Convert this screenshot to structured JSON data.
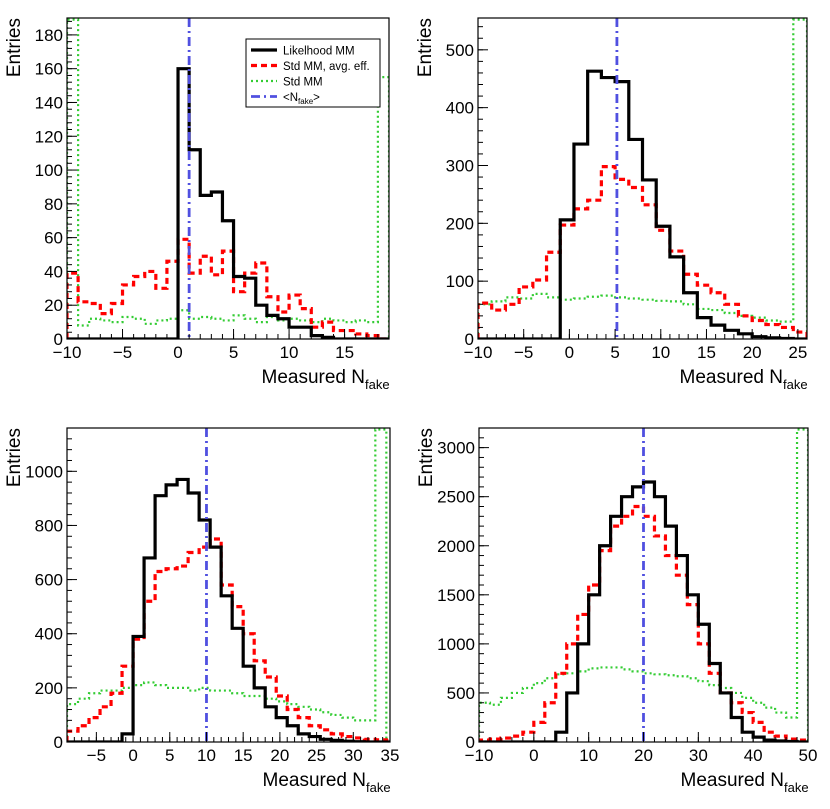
{
  "colors": {
    "likelihood": "#000000",
    "std_avg": "#ff0000",
    "std": "#33cc33",
    "mean": "#5050e0"
  },
  "legend": {
    "entries": [
      {
        "key": "likelihood",
        "label": "Likelhood MM",
        "style": "solid"
      },
      {
        "key": "std_avg",
        "label": "Std MM, avg. eff.",
        "style": "dashed"
      },
      {
        "key": "std",
        "label": "Std MM",
        "style": "dotted"
      },
      {
        "key": "mean",
        "label_main": "<N",
        "label_sub": "fake",
        "label_end": ">",
        "style": "dashdot"
      }
    ]
  },
  "chart_data": [
    {
      "type": "histogram",
      "title": "",
      "xlabel_main": "Measured N",
      "xlabel_sub": "fake",
      "ylabel": "Entries",
      "xlim": [
        -10,
        19
      ],
      "ylim": [
        0,
        190
      ],
      "xticks": [
        -10,
        -5,
        0,
        5,
        10,
        15
      ],
      "yticks": [
        0,
        20,
        40,
        60,
        80,
        100,
        120,
        140,
        160,
        180
      ],
      "mean_line": 1,
      "series": [
        {
          "key": "likelihood",
          "name": "Likelhood MM",
          "edges": [
            -10,
            -9,
            -8,
            -7,
            -6,
            -5,
            -4,
            -3,
            -2,
            -1,
            0,
            1,
            2,
            3,
            4,
            5,
            6,
            7,
            8,
            9,
            10,
            11,
            12,
            13,
            14,
            15,
            16,
            17,
            18,
            19
          ],
          "values": [
            0,
            0,
            0,
            0,
            0,
            0,
            0,
            0,
            0,
            0,
            160,
            112,
            85,
            87,
            70,
            37,
            36,
            20,
            14,
            12,
            7,
            7,
            2,
            1,
            0,
            0,
            0,
            0,
            0
          ]
        },
        {
          "key": "std_avg",
          "name": "Std MM, avg. eff.",
          "edges": [
            -10,
            -9,
            -8,
            -7,
            -6,
            -5,
            -4,
            -3,
            -2,
            -1,
            0,
            1,
            2,
            3,
            4,
            5,
            6,
            7,
            8,
            9,
            10,
            11,
            12,
            13,
            14,
            15,
            16,
            17,
            18,
            19
          ],
          "values": [
            39,
            22,
            21,
            15,
            21,
            32,
            37,
            40,
            30,
            46,
            59,
            39,
            49,
            38,
            52,
            28,
            39,
            45,
            25,
            16,
            26,
            18,
            7,
            10,
            5,
            5,
            3,
            2,
            0
          ]
        },
        {
          "key": "std",
          "name": "Std MM",
          "edges": [
            -10,
            -9,
            -8,
            -7,
            -6,
            -5,
            -4,
            -3,
            -2,
            -1,
            0,
            1,
            2,
            3,
            4,
            5,
            6,
            7,
            8,
            9,
            10,
            11,
            12,
            13,
            14,
            15,
            16,
            17,
            18,
            19
          ],
          "values": [
            190,
            8,
            12,
            11,
            10,
            13,
            12,
            9,
            11,
            12,
            17,
            12,
            13,
            12,
            11,
            14,
            12,
            10,
            13,
            11,
            12,
            11,
            10,
            12,
            11,
            10,
            11,
            10,
            155
          ]
        }
      ]
    },
    {
      "type": "histogram",
      "title": "",
      "xlabel_main": "Measured N",
      "xlabel_sub": "fake",
      "ylabel": "Entries",
      "xlim": [
        -10,
        26
      ],
      "ylim": [
        0,
        555
      ],
      "xticks": [
        -10,
        -5,
        0,
        5,
        10,
        15,
        20,
        25
      ],
      "yticks": [
        0,
        100,
        200,
        300,
        400,
        500
      ],
      "mean_line": 5.2,
      "series": [
        {
          "key": "likelihood",
          "name": "Likelhood MM",
          "edges": [
            -10,
            -8.5,
            -7,
            -5.5,
            -4,
            -2.5,
            -1,
            0.5,
            2,
            3.5,
            5,
            6.5,
            8,
            9.5,
            11,
            12.5,
            14,
            15.5,
            17,
            18.5,
            20,
            21.5,
            23,
            24.5,
            26
          ],
          "values": [
            0,
            0,
            0,
            0,
            0,
            0,
            206,
            337,
            463,
            452,
            445,
            345,
            275,
            195,
            142,
            80,
            37,
            24,
            15,
            9,
            4,
            2,
            1,
            0
          ]
        },
        {
          "key": "std_avg",
          "name": "Std MM, avg. eff.",
          "edges": [
            -10,
            -8.5,
            -7,
            -5.5,
            -4,
            -2.5,
            -1,
            0.5,
            2,
            3.5,
            5,
            6.5,
            8,
            9.5,
            11,
            12.5,
            14,
            15.5,
            17,
            18.5,
            20,
            21.5,
            23,
            24.5,
            26
          ],
          "values": [
            62,
            50,
            60,
            90,
            102,
            150,
            197,
            225,
            240,
            298,
            276,
            262,
            232,
            188,
            152,
            112,
            93,
            80,
            60,
            40,
            32,
            25,
            20,
            12
          ]
        },
        {
          "key": "std",
          "name": "Std MM",
          "edges": [
            -10,
            -8.5,
            -7,
            -5.5,
            -4,
            -2.5,
            -1,
            0.5,
            2,
            3.5,
            5,
            6.5,
            8,
            9.5,
            11,
            12.5,
            14,
            15.5,
            17,
            18.5,
            20,
            21.5,
            23,
            24.5,
            26
          ],
          "values": [
            60,
            65,
            72,
            70,
            78,
            72,
            68,
            70,
            73,
            75,
            72,
            70,
            68,
            66,
            65,
            60,
            52,
            50,
            45,
            40,
            37,
            32,
            30,
            555
          ]
        }
      ]
    },
    {
      "type": "histogram",
      "title": "",
      "xlabel_main": "Measured N",
      "xlabel_sub": "fake",
      "ylabel": "Entries",
      "xlim": [
        -9,
        35
      ],
      "ylim": [
        0,
        1160
      ],
      "xticks": [
        -5,
        0,
        5,
        10,
        15,
        20,
        25,
        30,
        35
      ],
      "yticks": [
        0,
        200,
        400,
        600,
        800,
        1000
      ],
      "mean_line": 10,
      "series": [
        {
          "key": "likelihood",
          "name": "Likelhood MM",
          "edges": [
            -9,
            -7.5,
            -6,
            -4.5,
            -3,
            -1.5,
            0,
            1.5,
            3,
            4.5,
            6,
            7.5,
            9,
            10.5,
            12,
            13.5,
            15,
            16.5,
            18,
            19.5,
            21,
            22.5,
            24,
            25.5,
            27,
            28.5,
            30,
            31.5,
            33,
            34.5,
            35
          ],
          "values": [
            0,
            0,
            0,
            0,
            0,
            30,
            390,
            680,
            910,
            950,
            970,
            920,
            820,
            720,
            540,
            420,
            280,
            200,
            130,
            90,
            60,
            30,
            20,
            10,
            6,
            3,
            1,
            0,
            0,
            0
          ]
        },
        {
          "key": "std_avg",
          "name": "Std MM, avg. eff.",
          "edges": [
            -9,
            -7.5,
            -6,
            -4.5,
            -3,
            -1.5,
            0,
            1.5,
            3,
            4.5,
            6,
            7.5,
            9,
            10.5,
            12,
            13.5,
            15,
            16.5,
            18,
            19.5,
            21,
            22.5,
            24,
            25.5,
            27,
            28.5,
            30,
            31.5,
            33,
            34.5,
            35
          ],
          "values": [
            40,
            60,
            90,
            130,
            180,
            280,
            380,
            520,
            630,
            640,
            650,
            700,
            720,
            750,
            580,
            500,
            400,
            300,
            240,
            170,
            120,
            90,
            60,
            45,
            30,
            20,
            15,
            10,
            8,
            5
          ]
        },
        {
          "key": "std",
          "name": "Std MM",
          "edges": [
            -9,
            -7.5,
            -6,
            -4.5,
            -3,
            -1.5,
            0,
            1.5,
            3,
            4.5,
            6,
            7.5,
            9,
            10.5,
            12,
            13.5,
            15,
            16.5,
            18,
            19.5,
            21,
            22.5,
            24,
            25.5,
            27,
            28.5,
            30,
            31.5,
            33,
            34.5,
            35
          ],
          "values": [
            140,
            160,
            180,
            190,
            190,
            200,
            210,
            220,
            210,
            200,
            200,
            190,
            200,
            190,
            190,
            180,
            170,
            170,
            160,
            150,
            140,
            130,
            120,
            110,
            100,
            90,
            80,
            80,
            1160,
            0
          ]
        }
      ]
    },
    {
      "type": "histogram",
      "title": "",
      "xlabel_main": "Measured N",
      "xlabel_sub": "fake",
      "ylabel": "Entries",
      "xlim": [
        -10,
        50
      ],
      "ylim": [
        0,
        3200
      ],
      "xticks": [
        -10,
        0,
        10,
        20,
        30,
        40,
        50
      ],
      "yticks": [
        0,
        500,
        1000,
        1500,
        2000,
        2500,
        3000
      ],
      "mean_line": 20,
      "series": [
        {
          "key": "likelihood",
          "name": "Likelhood MM",
          "edges": [
            -10,
            -8,
            -6,
            -4,
            -2,
            0,
            2,
            4,
            6,
            8,
            10,
            12,
            14,
            16,
            18,
            20,
            22,
            24,
            26,
            28,
            30,
            32,
            34,
            36,
            38,
            40,
            42,
            44,
            46,
            48,
            50
          ],
          "values": [
            0,
            0,
            0,
            0,
            0,
            0,
            0,
            100,
            500,
            1000,
            1500,
            2000,
            2300,
            2500,
            2600,
            2650,
            2500,
            2200,
            1900,
            1500,
            1200,
            800,
            500,
            250,
            100,
            50,
            20,
            10,
            5,
            0
          ]
        },
        {
          "key": "std_avg",
          "name": "Std MM, avg. eff.",
          "edges": [
            -10,
            -8,
            -6,
            -4,
            -2,
            0,
            2,
            4,
            6,
            8,
            10,
            12,
            14,
            16,
            18,
            20,
            22,
            24,
            26,
            28,
            30,
            32,
            34,
            36,
            38,
            40,
            42,
            44,
            46,
            48,
            50
          ],
          "values": [
            20,
            30,
            40,
            60,
            100,
            200,
            400,
            700,
            1000,
            1300,
            1600,
            1950,
            2200,
            2300,
            2400,
            2300,
            2100,
            1900,
            1700,
            1400,
            1000,
            700,
            500,
            400,
            300,
            200,
            100,
            60,
            30,
            20
          ]
        },
        {
          "key": "std",
          "name": "Std MM",
          "edges": [
            -10,
            -8,
            -6,
            -4,
            -2,
            0,
            2,
            4,
            6,
            8,
            10,
            12,
            14,
            16,
            18,
            20,
            22,
            24,
            26,
            28,
            30,
            32,
            34,
            36,
            38,
            40,
            42,
            44,
            46,
            48,
            50
          ],
          "values": [
            400,
            380,
            450,
            500,
            550,
            600,
            650,
            690,
            700,
            720,
            750,
            760,
            760,
            740,
            720,
            700,
            690,
            680,
            670,
            650,
            620,
            580,
            550,
            500,
            450,
            400,
            350,
            300,
            250,
            3200
          ]
        }
      ]
    }
  ]
}
